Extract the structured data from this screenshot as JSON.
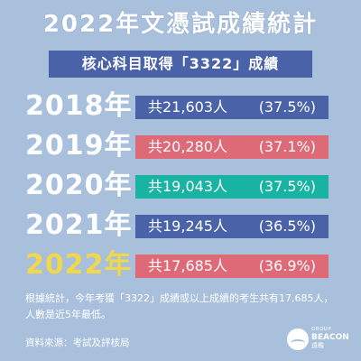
{
  "title": "2022年文憑試成績統計",
  "subtitle": "核心科目取得「3322」成績",
  "colors": {
    "background": "#a9c0dd",
    "blue": "#4a63a8",
    "red": "#de6a78",
    "teal": "#19b3a3",
    "highlight_year": "#f1d74a"
  },
  "rows": [
    {
      "year": "2018年",
      "count": "共21,603人",
      "percent": "(37.5%)",
      "color": "#4a63a8"
    },
    {
      "year": "2019年",
      "count": "共20,280人",
      "percent": "(37.1%)",
      "color": "#de6a78"
    },
    {
      "year": "2020年",
      "count": "共19,043人",
      "percent": "(37.5%)",
      "color": "#19b3a3"
    },
    {
      "year": "2021年",
      "count": "共19,245人",
      "percent": "(36.5%)",
      "color": "#4a63a8"
    },
    {
      "year": "2022年",
      "count": "共17,685人",
      "percent": "(36.9%)",
      "color": "#de6a78"
    }
  ],
  "note_line1": "根據統計，今年考獲「3322」成績或以上成績的考生共有17,685人，",
  "note_line2": "人數是近5年最低。",
  "source": "資料來源：考試及評核局",
  "logo": {
    "group": "GROUP",
    "brand": "BEACON",
    "cn": "遠瞻"
  }
}
